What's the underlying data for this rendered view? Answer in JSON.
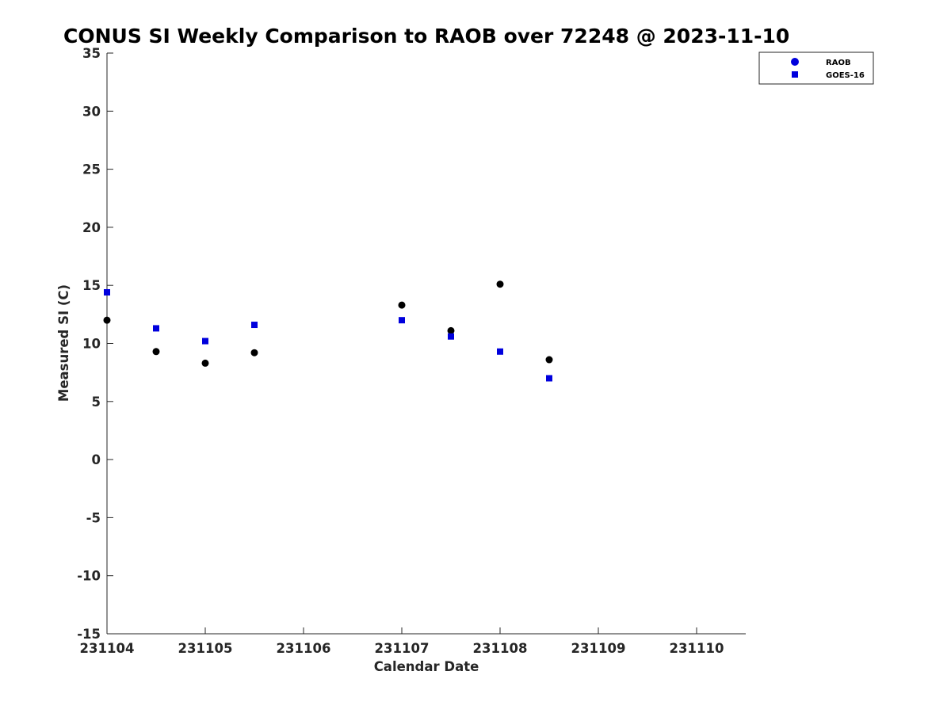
{
  "chart_data": {
    "type": "scatter",
    "title": "CONUS SI Weekly Comparison to RAOB over 72248 @ 2023-11-10",
    "xlabel": "Calendar Date",
    "ylabel": "Measured SI (C)",
    "xlim": [
      0,
      6.5
    ],
    "ylim": [
      -15,
      35
    ],
    "x_ticks": [
      0,
      1,
      2,
      3,
      4,
      5,
      6
    ],
    "x_tick_labels": [
      "231104",
      "231105",
      "231106",
      "231107",
      "231108",
      "231109",
      "231110"
    ],
    "y_ticks": [
      -15,
      -10,
      -5,
      0,
      5,
      10,
      15,
      20,
      25,
      30,
      35
    ],
    "y_tick_labels": [
      "-15",
      "-10",
      "-5",
      "0",
      "5",
      "10",
      "15",
      "20",
      "25",
      "30",
      "35"
    ],
    "legend_position": "top-right",
    "series": [
      {
        "name": "RAOB",
        "marker": "circle",
        "color": "#000000",
        "legend_color": "#0000dd",
        "x": [
          0,
          0.5,
          1,
          1.5,
          3,
          3.5,
          4,
          4.5
        ],
        "y": [
          12.0,
          9.3,
          8.3,
          9.2,
          13.3,
          11.1,
          15.1,
          8.6
        ]
      },
      {
        "name": "GOES-16",
        "marker": "square",
        "color": "#0000dd",
        "legend_color": "#0000dd",
        "x": [
          0,
          0.5,
          1,
          1.5,
          3,
          3.5,
          4,
          4.5
        ],
        "y": [
          14.4,
          11.3,
          10.2,
          11.6,
          12.0,
          10.6,
          9.3,
          7.0
        ]
      }
    ]
  }
}
